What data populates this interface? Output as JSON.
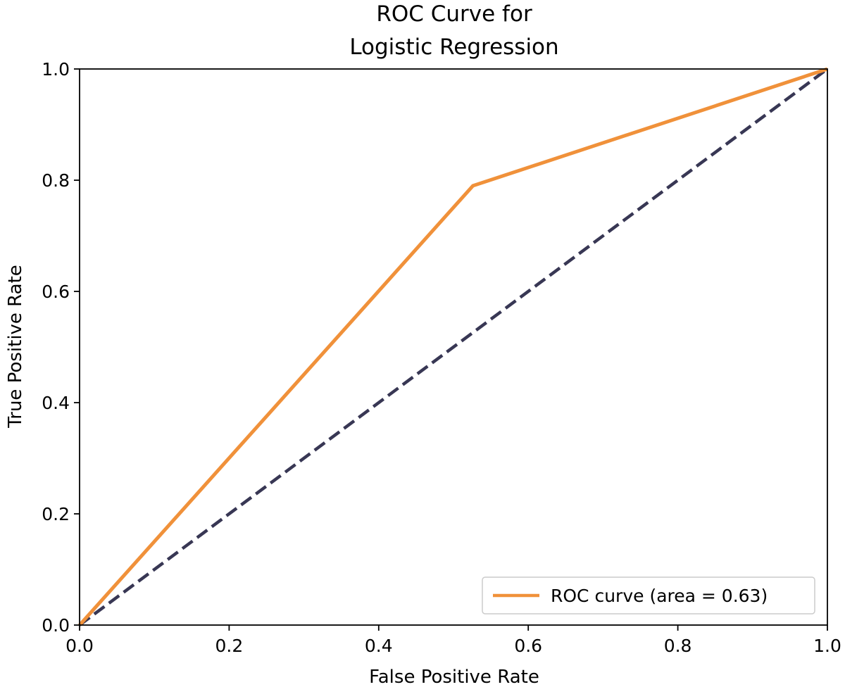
{
  "chart_data": {
    "type": "line",
    "title": [
      "ROC Curve for",
      "Logistic Regression"
    ],
    "xlabel": "False Positive Rate",
    "ylabel": "True Positive Rate",
    "xlim": [
      0.0,
      1.0
    ],
    "ylim": [
      0.0,
      1.0
    ],
    "xticks": [
      "0.0",
      "0.2",
      "0.4",
      "0.6",
      "0.8",
      "1.0"
    ],
    "yticks": [
      "0.0",
      "0.2",
      "0.4",
      "0.6",
      "0.8",
      "1.0"
    ],
    "grid": false,
    "legend_position": "lower-right",
    "series": [
      {
        "name": "ROC curve (area = 0.63)",
        "style": "solid",
        "color": "#f0913a",
        "x": [
          0.0,
          0.526,
          1.0
        ],
        "y": [
          0.0,
          0.79,
          1.0
        ]
      },
      {
        "style": "dashed",
        "color": "#383754",
        "x": [
          0.0,
          1.0
        ],
        "y": [
          0.0,
          1.0
        ]
      }
    ]
  }
}
